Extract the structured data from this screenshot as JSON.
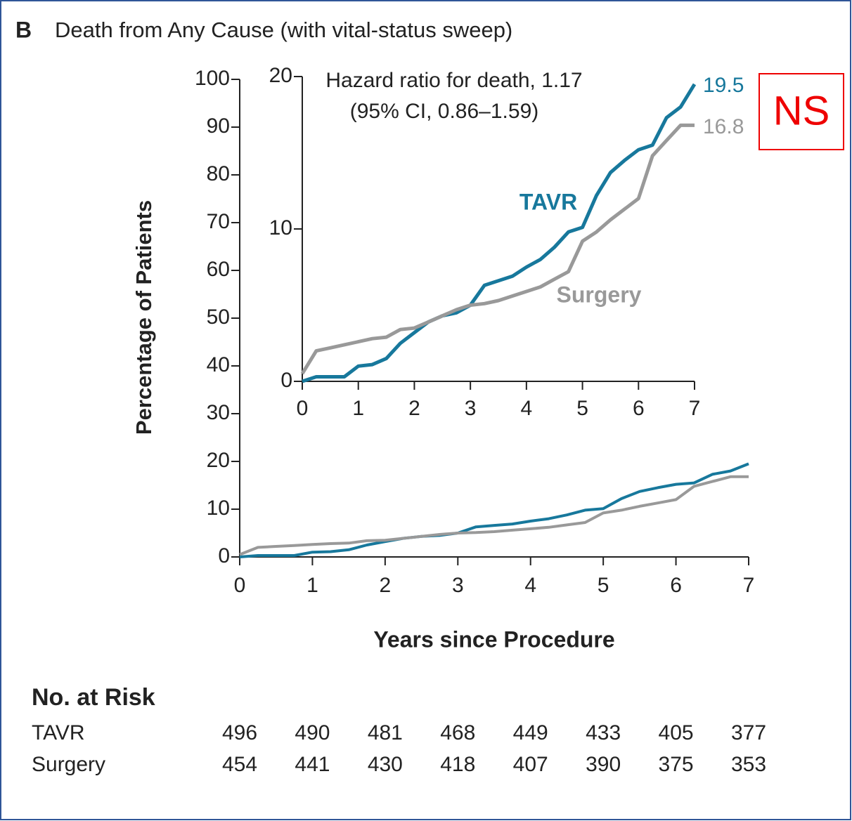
{
  "chart_data": [
    {
      "type": "line",
      "panel": "B",
      "title": "Death from Any Cause (with vital-status sweep)",
      "xlabel": "Years since Procedure",
      "ylabel": "Percentage of Patients",
      "annotation": "NS",
      "x": [
        0,
        0.25,
        0.5,
        0.75,
        1,
        1.25,
        1.5,
        1.75,
        2,
        2.25,
        2.5,
        2.75,
        3,
        3.25,
        3.5,
        3.75,
        4,
        4.25,
        4.5,
        4.75,
        5,
        5.25,
        5.5,
        5.75,
        6,
        6.25,
        6.5,
        6.75,
        7
      ],
      "series": [
        {
          "color": "#17789c",
          "values": [
            0,
            0.3,
            0.3,
            0.3,
            1.0,
            1.1,
            1.5,
            2.5,
            3.2,
            3.9,
            4.3,
            4.5,
            5.0,
            6.3,
            6.6,
            6.9,
            7.5,
            8.0,
            8.8,
            9.8,
            10.1,
            12.2,
            13.7,
            14.5,
            15.2,
            15.5,
            17.3,
            18.0,
            19.5
          ]
        },
        {
          "color": "#999999",
          "values": [
            0.5,
            2.0,
            2.2,
            2.4,
            2.6,
            2.8,
            2.9,
            3.4,
            3.5,
            3.9,
            4.3,
            4.7,
            5.0,
            5.1,
            5.3,
            5.6,
            5.9,
            6.2,
            6.7,
            7.2,
            9.2,
            9.8,
            10.6,
            11.3,
            12.0,
            14.8,
            15.8,
            16.8,
            16.8
          ]
        }
      ],
      "xlim": [
        0,
        7
      ],
      "xticks": [
        0,
        1,
        2,
        3,
        4,
        5,
        6,
        7
      ],
      "ylim": [
        0,
        100
      ],
      "yticks": [
        0,
        10,
        20,
        30,
        40,
        50,
        60,
        70,
        80,
        90,
        100
      ],
      "risk_table": {
        "title": "No. at Risk",
        "rows": [
          {
            "name": "TAVR",
            "values": [
              496,
              490,
              481,
              468,
              449,
              433,
              405,
              377
            ]
          },
          {
            "name": "Surgery",
            "values": [
              454,
              441,
              430,
              418,
              407,
              390,
              375,
              353
            ]
          }
        ]
      }
    },
    {
      "type": "line",
      "annotation": [
        "Hazard ratio for death, 1.17",
        "(95% CI, 0.86–1.59)"
      ],
      "x": [
        0,
        0.25,
        0.5,
        0.75,
        1,
        1.25,
        1.5,
        1.75,
        2,
        2.25,
        2.5,
        2.75,
        3,
        3.25,
        3.5,
        3.75,
        4,
        4.25,
        4.5,
        4.75,
        5,
        5.25,
        5.5,
        5.75,
        6,
        6.25,
        6.5,
        6.75,
        7
      ],
      "series": [
        {
          "name": "TAVR",
          "color": "#17789c",
          "values": [
            0,
            0.3,
            0.3,
            0.3,
            1.0,
            1.1,
            1.5,
            2.5,
            3.2,
            3.9,
            4.3,
            4.5,
            5.0,
            6.3,
            6.6,
            6.9,
            7.5,
            8.0,
            8.8,
            9.8,
            10.1,
            12.2,
            13.7,
            14.5,
            15.2,
            15.5,
            17.3,
            18.0,
            19.5
          ]
        },
        {
          "name": "Surgery",
          "color": "#999999",
          "values": [
            0.5,
            2.0,
            2.2,
            2.4,
            2.6,
            2.8,
            2.9,
            3.4,
            3.5,
            3.9,
            4.3,
            4.7,
            5.0,
            5.1,
            5.3,
            5.6,
            5.9,
            6.2,
            6.7,
            7.2,
            9.2,
            9.8,
            10.6,
            11.3,
            12.0,
            14.8,
            15.8,
            16.8,
            16.8
          ]
        }
      ],
      "xlim": [
        0,
        7
      ],
      "xticks": [
        0,
        1,
        2,
        3,
        4,
        5,
        6,
        7
      ],
      "ylim": [
        0,
        20
      ],
      "yticks": [
        0,
        10,
        20
      ]
    }
  ]
}
